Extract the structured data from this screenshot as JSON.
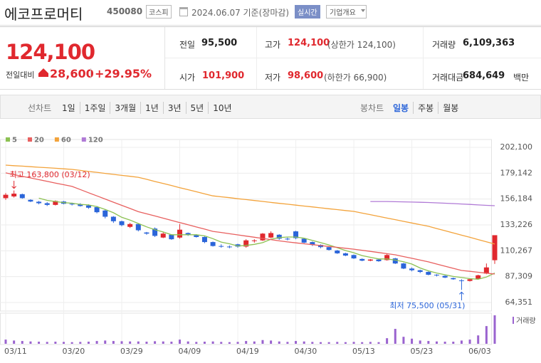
{
  "header": {
    "name": "에코프로머티",
    "code": "450080",
    "market": "코스피",
    "date": "2024.06.07 기준(장마감)",
    "realtime": "실시간",
    "company_info": "기업개요"
  },
  "price": {
    "current": "124,100",
    "change_label": "전일대비",
    "change": "28,600",
    "change_rate": "+29.95%"
  },
  "summary": [
    {
      "label": "전일",
      "value": "95,500"
    },
    {
      "label": "고가",
      "value": "124,100",
      "note": "(상한가 124,100)"
    },
    {
      "label": "거래량",
      "value": "6,109,363"
    },
    {
      "label": "시가",
      "value": "101,900"
    },
    {
      "label": "저가",
      "value": "98,600",
      "note": "(하한가 66,900)"
    },
    {
      "label": "거래대금",
      "value": "684,649",
      "unit": "백만"
    }
  ],
  "tabs": {
    "line_label": "선차트",
    "line": [
      "1일",
      "1주일",
      "3개월",
      "1년",
      "3년",
      "5년",
      "10년"
    ],
    "candle_label": "봉차트",
    "candle": [
      "일봉",
      "주봉",
      "월봉"
    ]
  },
  "chart_data": {
    "type": "candlestick",
    "categories": [
      "03/11",
      null,
      null,
      null,
      null,
      null,
      null,
      "03/20",
      null,
      null,
      null,
      null,
      null,
      null,
      "03/29",
      null,
      null,
      null,
      null,
      null,
      null,
      "04/09",
      null,
      null,
      null,
      null,
      null,
      null,
      "04/19",
      null,
      null,
      null,
      null,
      null,
      null,
      "04/30",
      null,
      null,
      null,
      null,
      null,
      null,
      "05/13",
      null,
      null,
      null,
      null,
      null,
      null,
      "05/23",
      null,
      null,
      null,
      null,
      null,
      null,
      "06/03",
      null,
      null,
      null
    ],
    "open": [
      157000,
      158500,
      160500,
      155500,
      153800,
      152500,
      151000,
      154000,
      152000,
      151500,
      150500,
      149000,
      146000,
      140500,
      136500,
      131500,
      134000,
      126500,
      130000,
      122000,
      124500,
      122000,
      126000,
      124000,
      122500,
      118000,
      114500,
      114000,
      116000,
      114000,
      119000,
      119500,
      122000,
      124500,
      121000,
      127500,
      121000,
      118000,
      115500,
      113500,
      110500,
      108000,
      106500,
      103000,
      101500,
      102500,
      102000,
      103500,
      99000,
      94500,
      93000,
      91500,
      89000,
      88000,
      86000,
      84000,
      83500,
      85500,
      90000,
      101900
    ],
    "high": [
      161500,
      163800,
      161000,
      156000,
      154500,
      153500,
      155000,
      154500,
      153000,
      152500,
      151500,
      150000,
      147000,
      141000,
      137000,
      135000,
      134500,
      127000,
      131000,
      126500,
      125000,
      134000,
      126500,
      125000,
      123000,
      118500,
      116000,
      115000,
      116500,
      120500,
      120500,
      126000,
      127500,
      125000,
      122000,
      128000,
      121500,
      118500,
      116000,
      114000,
      111000,
      108500,
      107000,
      103500,
      103000,
      103000,
      107500,
      104000,
      99500,
      95500,
      93500,
      92000,
      89500,
      88500,
      86500,
      85000,
      85500,
      89000,
      99000,
      124100
    ],
    "low": [
      155500,
      157500,
      156500,
      153500,
      151500,
      150000,
      150500,
      151500,
      150500,
      149500,
      147500,
      143500,
      139000,
      135000,
      132000,
      130500,
      127500,
      124500,
      122500,
      121500,
      120000,
      121000,
      123500,
      122000,
      117000,
      114000,
      113000,
      112500,
      113000,
      113000,
      117500,
      119000,
      121500,
      120000,
      119500,
      120500,
      117000,
      114500,
      112500,
      110500,
      107500,
      105500,
      103000,
      101000,
      101000,
      100500,
      101500,
      98500,
      94000,
      92000,
      90500,
      88500,
      87500,
      86000,
      84500,
      75500,
      83000,
      85000,
      89500,
      98600
    ],
    "close": [
      160000,
      161000,
      157000,
      154000,
      152500,
      151000,
      154500,
      152000,
      151500,
      150000,
      148500,
      144500,
      140500,
      136500,
      133000,
      134000,
      128500,
      125500,
      123500,
      125500,
      120500,
      129000,
      124500,
      122500,
      118000,
      114500,
      114000,
      113500,
      114000,
      119500,
      119500,
      125500,
      126000,
      121000,
      120500,
      121500,
      117500,
      115500,
      113500,
      111000,
      108000,
      106000,
      103500,
      101500,
      102500,
      101000,
      106500,
      99000,
      94500,
      93000,
      91500,
      89000,
      88500,
      86500,
      85000,
      83500,
      85000,
      88500,
      95500,
      124100
    ],
    "up_color": "#e0282e",
    "down_color": "#2b65d9",
    "ylim": [
      64351,
      202100
    ],
    "yticks": [
      {
        "value": 64351,
        "label": "64,351"
      },
      {
        "value": 87309,
        "label": "87,309"
      },
      {
        "value": 110267,
        "label": "110,267"
      },
      {
        "value": 133226,
        "label": "133,226"
      },
      {
        "value": 156184,
        "label": "156,184"
      },
      {
        "value": 179142,
        "label": "179,142"
      },
      {
        "value": 202100,
        "label": "202,100"
      }
    ],
    "grid": true,
    "moving_averages": [
      {
        "name": "5",
        "color": "#8cc152",
        "values": [
          null,
          null,
          null,
          null,
          157000,
          155000,
          154000,
          153000,
          152500,
          151500,
          151000,
          149500,
          147000,
          144000,
          140000,
          137500,
          134500,
          131500,
          129000,
          127000,
          124500,
          124500,
          124500,
          124500,
          123500,
          121000,
          118000,
          116500,
          114500,
          115000,
          116000,
          117500,
          120500,
          122000,
          122500,
          122500,
          121500,
          119500,
          117500,
          115500,
          113000,
          110500,
          108500,
          106000,
          104500,
          103000,
          103000,
          102000,
          100500,
          98500,
          95000,
          92500,
          90500,
          89000,
          87500,
          86500,
          85500,
          85000,
          87000,
          90500
        ]
      },
      {
        "name": "20",
        "color": "#e8605f",
        "values": [
          179400,
          177900,
          176400,
          174900,
          173400,
          171900,
          170400,
          168900,
          167400,
          164600,
          161800,
          159000,
          156200,
          153400,
          150600,
          147800,
          145000,
          143100,
          141200,
          139200,
          137300,
          135300,
          133400,
          131400,
          129500,
          127500,
          126500,
          125400,
          124400,
          123300,
          122300,
          121200,
          120200,
          119100,
          118100,
          117300,
          116500,
          115700,
          114900,
          114100,
          113300,
          112500,
          111700,
          110700,
          109700,
          108700,
          107700,
          106700,
          105100,
          103600,
          102000,
          100400,
          98500,
          96600,
          94700,
          92800,
          92000,
          91200,
          90400,
          89600
        ]
      },
      {
        "name": "60",
        "color": "#f3a33b",
        "values": [
          186300,
          185800,
          185400,
          184900,
          184400,
          184000,
          183500,
          183000,
          182500,
          181600,
          180700,
          179900,
          179000,
          178100,
          177200,
          176400,
          175500,
          173700,
          171800,
          170000,
          168200,
          166300,
          164500,
          162700,
          160800,
          159000,
          158200,
          157400,
          156500,
          155700,
          154900,
          154100,
          153200,
          152400,
          151600,
          150800,
          150000,
          149200,
          148400,
          147600,
          146800,
          146000,
          145200,
          143700,
          142300,
          140800,
          139300,
          137900,
          136400,
          134900,
          133500,
          132000,
          130000,
          128100,
          126100,
          124100,
          122200,
          120200,
          118200,
          116200
        ]
      },
      {
        "name": "120",
        "color": "#b07ad6",
        "values": [
          null,
          null,
          null,
          null,
          null,
          null,
          null,
          null,
          null,
          null,
          null,
          null,
          null,
          null,
          null,
          null,
          null,
          null,
          null,
          null,
          null,
          null,
          null,
          null,
          null,
          null,
          null,
          null,
          null,
          null,
          null,
          null,
          null,
          null,
          null,
          null,
          null,
          null,
          null,
          null,
          null,
          null,
          null,
          null,
          154000,
          154000,
          154000,
          153800,
          153700,
          153500,
          153300,
          153100,
          152800,
          152500,
          152200,
          151800,
          151400,
          151000,
          150600,
          150300
        ]
      }
    ],
    "high_label": {
      "text": "최고 163,800 (03/12)",
      "value": 163800
    },
    "low_label": {
      "text": "최저 75,500 (05/31)",
      "value": 75500
    },
    "volume": {
      "name": "거래량",
      "color": "#9a63cf",
      "values": [
        900000,
        700000,
        600000,
        500000,
        450000,
        400000,
        450000,
        400000,
        350000,
        400000,
        450000,
        600000,
        700000,
        600000,
        550000,
        500000,
        500000,
        450000,
        550000,
        500000,
        450000,
        900000,
        500000,
        400000,
        450000,
        500000,
        400000,
        350000,
        400000,
        600000,
        500000,
        800000,
        700000,
        500000,
        400000,
        600000,
        500000,
        400000,
        350000,
        350000,
        400000,
        350000,
        400000,
        350000,
        400000,
        350000,
        1200000,
        3200000,
        1500000,
        1100000,
        700000,
        600000,
        500000,
        450000,
        450000,
        700000,
        900000,
        1800000,
        3800000,
        6109363
      ]
    }
  }
}
